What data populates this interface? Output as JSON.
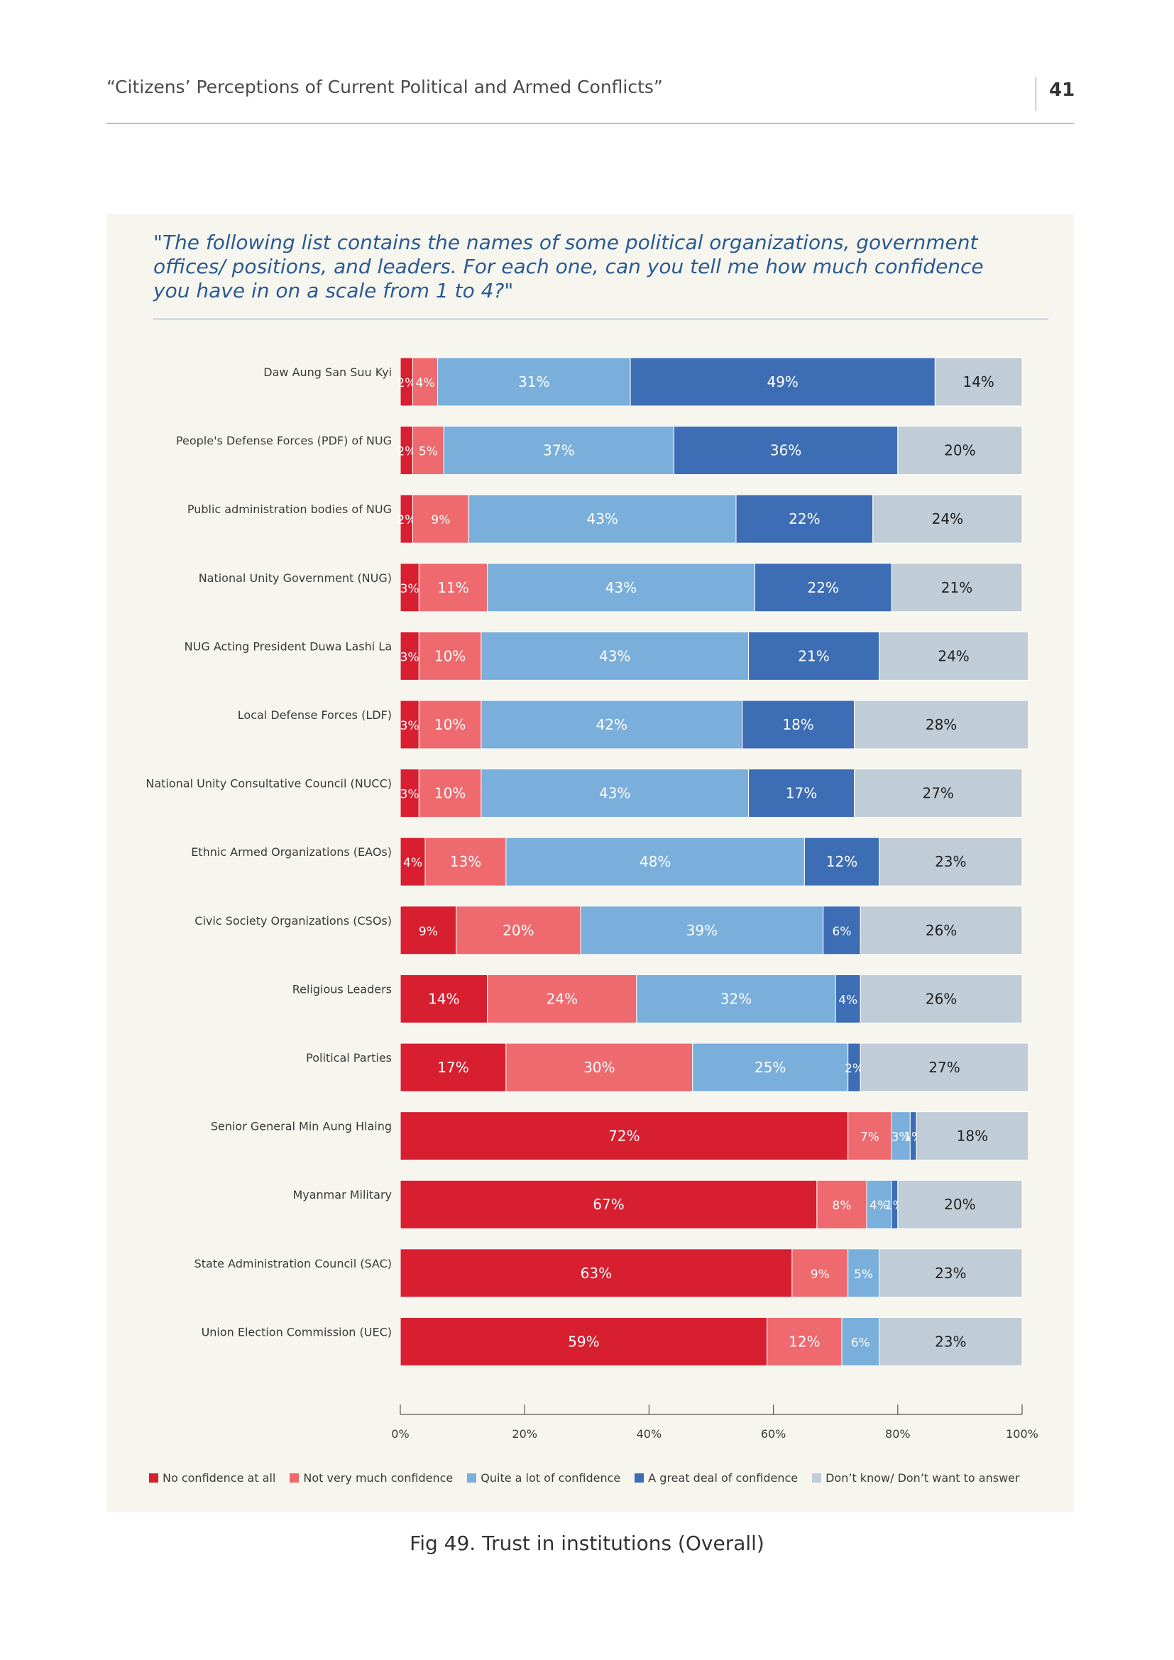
{
  "header": {
    "title": "“Citizens’ Perceptions of Current Political and Armed Conflicts”",
    "page_number": "41"
  },
  "question": "\"The following list contains the names of some political organizations, government offices/ positions, and leaders. For each one, can you tell me how much confidence you have in on a scale from 1 to 4?\"",
  "caption": "Fig 49. Trust in institutions (Overall)",
  "colors": {
    "No confidence at all": "#d71f30",
    "Not very much confidence": "#ee6a6e",
    "Quite a lot of confidence": "#7aaedb",
    "A great deal of confidence": "#3d6db4",
    "Don't know/ Don't want to answer": "#c0ccd6"
  },
  "chart_data": {
    "type": "bar",
    "orientation": "horizontal",
    "stacked": true,
    "xlim": [
      0,
      100
    ],
    "x_ticks": [
      "0%",
      "20%",
      "40%",
      "60%",
      "80%",
      "100%"
    ],
    "legend_position": "bottom",
    "categories": [
      "Daw Aung San Suu Kyi",
      "People's Defense Forces (PDF) of NUG",
      "Public administration bodies of NUG",
      "National Unity Government (NUG)",
      "NUG Acting President Duwa Lashi La",
      "Local Defense Forces (LDF)",
      "National Unity Consultative Council (NUCC)",
      "Ethnic Armed Organizations (EAOs)",
      "Civic Society Organizations (CSOs)",
      "Religious Leaders",
      "Political Parties",
      "Senior General Min Aung Hlaing",
      "Myanmar Military",
      "State Administration Council (SAC)",
      "Union Election Commission (UEC)"
    ],
    "series": [
      {
        "name": "No confidence at all",
        "values": [
          2,
          2,
          2,
          3,
          3,
          3,
          3,
          4,
          9,
          14,
          17,
          72,
          67,
          63,
          59
        ]
      },
      {
        "name": "Not very much confidence",
        "values": [
          4,
          5,
          9,
          11,
          10,
          10,
          10,
          13,
          20,
          24,
          30,
          7,
          8,
          9,
          12
        ]
      },
      {
        "name": "Quite a lot of confidence",
        "values": [
          31,
          37,
          43,
          43,
          43,
          42,
          43,
          48,
          39,
          32,
          25,
          3,
          4,
          5,
          6
        ]
      },
      {
        "name": "A great deal of confidence",
        "values": [
          49,
          36,
          22,
          22,
          21,
          18,
          17,
          12,
          6,
          4,
          2,
          1,
          1,
          null,
          null
        ]
      },
      {
        "name": "Don’t know/ Don’t want to answer",
        "values": [
          14,
          20,
          24,
          21,
          24,
          28,
          27,
          23,
          26,
          26,
          27,
          18,
          20,
          23,
          23
        ]
      }
    ]
  }
}
